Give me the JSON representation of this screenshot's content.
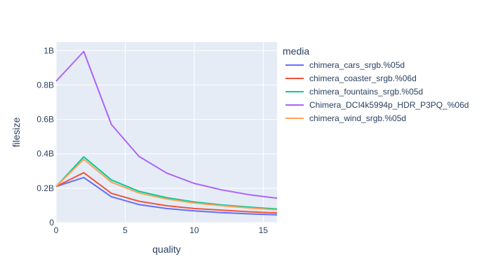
{
  "chart_data": {
    "type": "line",
    "xlabel": "quality",
    "ylabel": "filesize",
    "xlim": [
      0,
      16
    ],
    "ylim": [
      0,
      1050000000
    ],
    "xticks": [
      0,
      5,
      10,
      15
    ],
    "xtick_labels": [
      "0",
      "5",
      "10",
      "15"
    ],
    "yticks": [
      0,
      200000000,
      400000000,
      600000000,
      800000000,
      1000000000
    ],
    "ytick_labels": [
      "0",
      "0.2B",
      "0.4B",
      "0.6B",
      "0.8B",
      "1B"
    ],
    "grid": true,
    "legend_title": "media",
    "legend_placement": "right",
    "x": [
      0,
      2,
      4,
      6,
      8,
      10,
      12,
      14,
      16
    ],
    "series": [
      {
        "name": "chimera_cars_srgb.%05d",
        "color": "#636efa",
        "values": [
          210000000,
          262000000,
          150000000,
          105000000,
          82000000,
          68000000,
          58000000,
          51000000,
          45000000
        ]
      },
      {
        "name": "chimera_coaster_srgb.%06d",
        "color": "#ef553b",
        "values": [
          210000000,
          290000000,
          170000000,
          124000000,
          98000000,
          82000000,
          72000000,
          63000000,
          56000000
        ]
      },
      {
        "name": "chimera_fountains_srgb.%05d",
        "color": "#00cc96",
        "values": [
          210000000,
          382000000,
          248000000,
          182000000,
          145000000,
          120000000,
          103000000,
          90000000,
          79000000
        ]
      },
      {
        "name": "Chimera_DCI4k5994p_HDR_P3PQ_%06d",
        "color": "#ab63fa",
        "values": [
          822000000,
          995000000,
          570000000,
          385000000,
          288000000,
          228000000,
          190000000,
          162000000,
          142000000
        ]
      },
      {
        "name": "chimera_wind_srgb.%05d",
        "color": "#ffa15a",
        "values": [
          210000000,
          368000000,
          235000000,
          172000000,
          137000000,
          114000000,
          98000000,
          85000000,
          74000000
        ]
      }
    ]
  }
}
